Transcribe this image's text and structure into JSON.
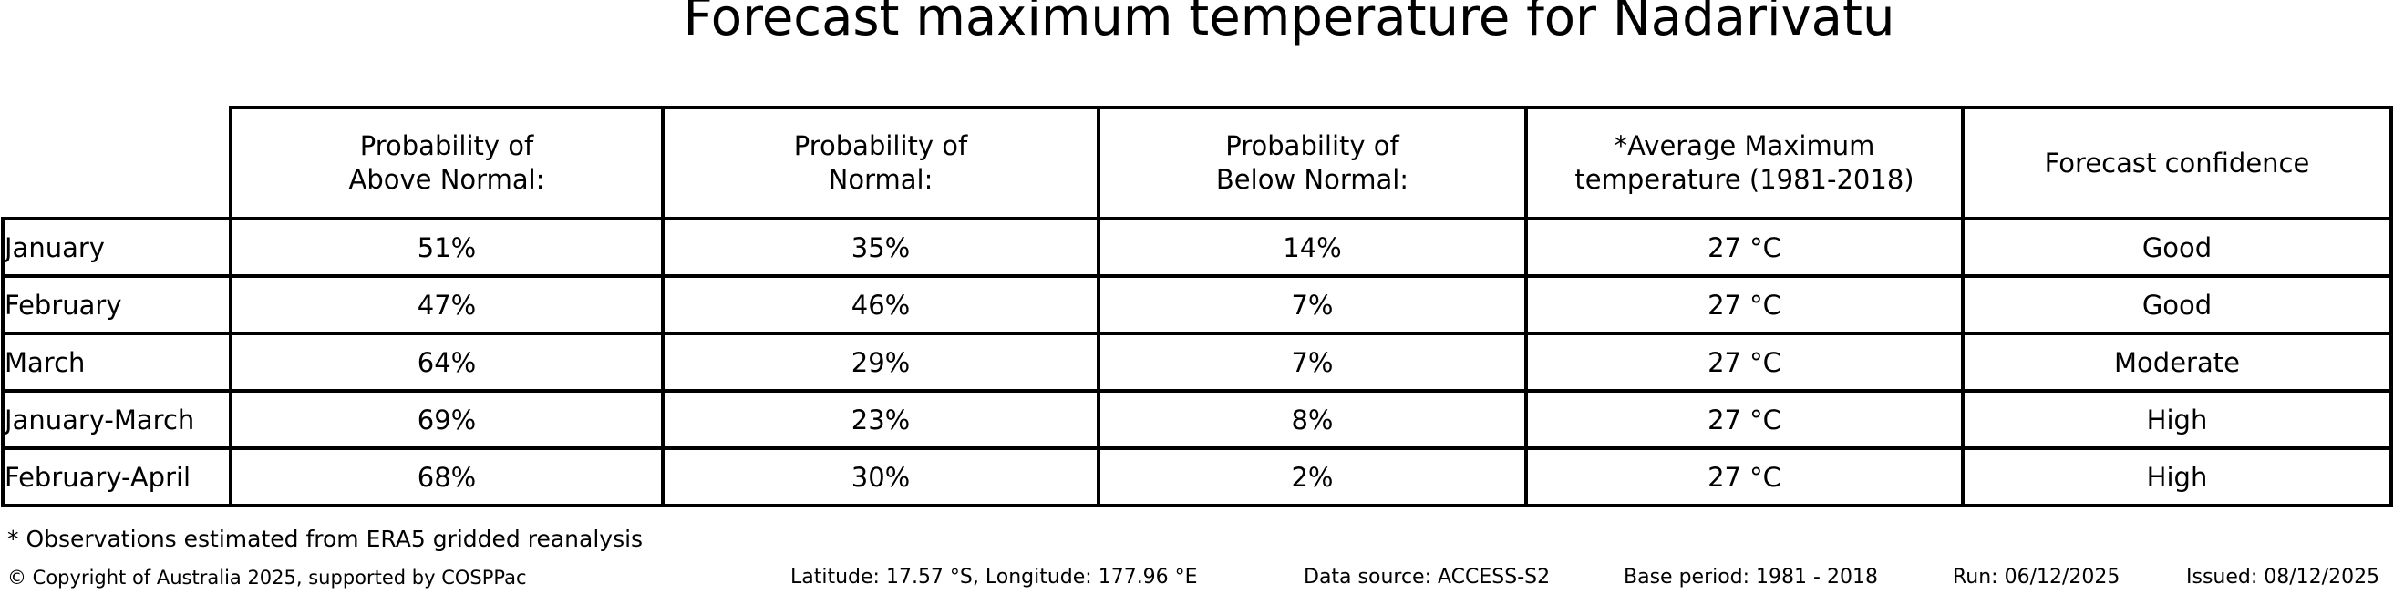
{
  "title": "Forecast maximum temperature for Nadarivatu",
  "table": {
    "corner": "",
    "columns": [
      "Probability of\nAbove Normal:",
      "Probability of\nNormal:",
      "Probability of\nBelow Normal:",
      "*Average Maximum\ntemperature (1981-2018)",
      "Forecast confidence"
    ],
    "rows": [
      {
        "label": "January",
        "cells": [
          "51%",
          "35%",
          "14%",
          "27 °C",
          "Good"
        ]
      },
      {
        "label": "February",
        "cells": [
          "47%",
          "46%",
          "7%",
          "27 °C",
          "Good"
        ]
      },
      {
        "label": "March",
        "cells": [
          "64%",
          "29%",
          "7%",
          "27 °C",
          "Moderate"
        ]
      },
      {
        "label": "January-March",
        "cells": [
          "69%",
          "23%",
          "8%",
          "27 °C",
          "High"
        ]
      },
      {
        "label": "February-April",
        "cells": [
          "68%",
          "30%",
          "2%",
          "27 °C",
          "High"
        ]
      }
    ]
  },
  "footnote": "* Observations estimated from ERA5 gridded reanalysis",
  "footer": {
    "copyright": "© Copyright of Australia 2025, supported by COSPPac",
    "location": "Latitude: 17.57 °S, Longitude: 177.96 °E",
    "data_source": "Data source: ACCESS-S2",
    "base_period": "Base period: 1981 - 2018",
    "run": "Run: 06/12/2025",
    "issued": "Issued: 08/12/2025"
  },
  "colors": {
    "text": "#000000",
    "border": "#000000",
    "background": "#ffffff"
  },
  "chart_data": {
    "type": "table",
    "title": "Forecast maximum temperature for Nadarivatu",
    "columns": [
      "",
      "Probability of Above Normal:",
      "Probability of Normal:",
      "Probability of Below Normal:",
      "*Average Maximum temperature (1981-2018)",
      "Forecast confidence"
    ],
    "rows": [
      [
        "January",
        "51%",
        "35%",
        "14%",
        "27 °C",
        "Good"
      ],
      [
        "February",
        "47%",
        "46%",
        "7%",
        "27 °C",
        "Good"
      ],
      [
        "March",
        "64%",
        "29%",
        "7%",
        "27 °C",
        "Moderate"
      ],
      [
        "January-March",
        "69%",
        "23%",
        "8%",
        "27 °C",
        "High"
      ],
      [
        "February-April",
        "68%",
        "30%",
        "2%",
        "27 °C",
        "High"
      ]
    ],
    "probability_above_normal_pct": [
      51,
      47,
      64,
      69,
      68
    ],
    "probability_normal_pct": [
      35,
      46,
      29,
      23,
      30
    ],
    "probability_below_normal_pct": [
      14,
      7,
      7,
      8,
      2
    ],
    "average_max_temperature_c": [
      27,
      27,
      27,
      27,
      27
    ],
    "forecast_confidence": [
      "Good",
      "Good",
      "Moderate",
      "High",
      "High"
    ],
    "notes": [
      "* Observations estimated from ERA5 gridded reanalysis"
    ],
    "metadata_line": "Latitude: 17.57 °S, Longitude: 177.96 °E | Data source: ACCESS-S2 | Base period: 1981 - 2018 | Run: 06/12/2025 | Issued: 08/12/2025"
  }
}
